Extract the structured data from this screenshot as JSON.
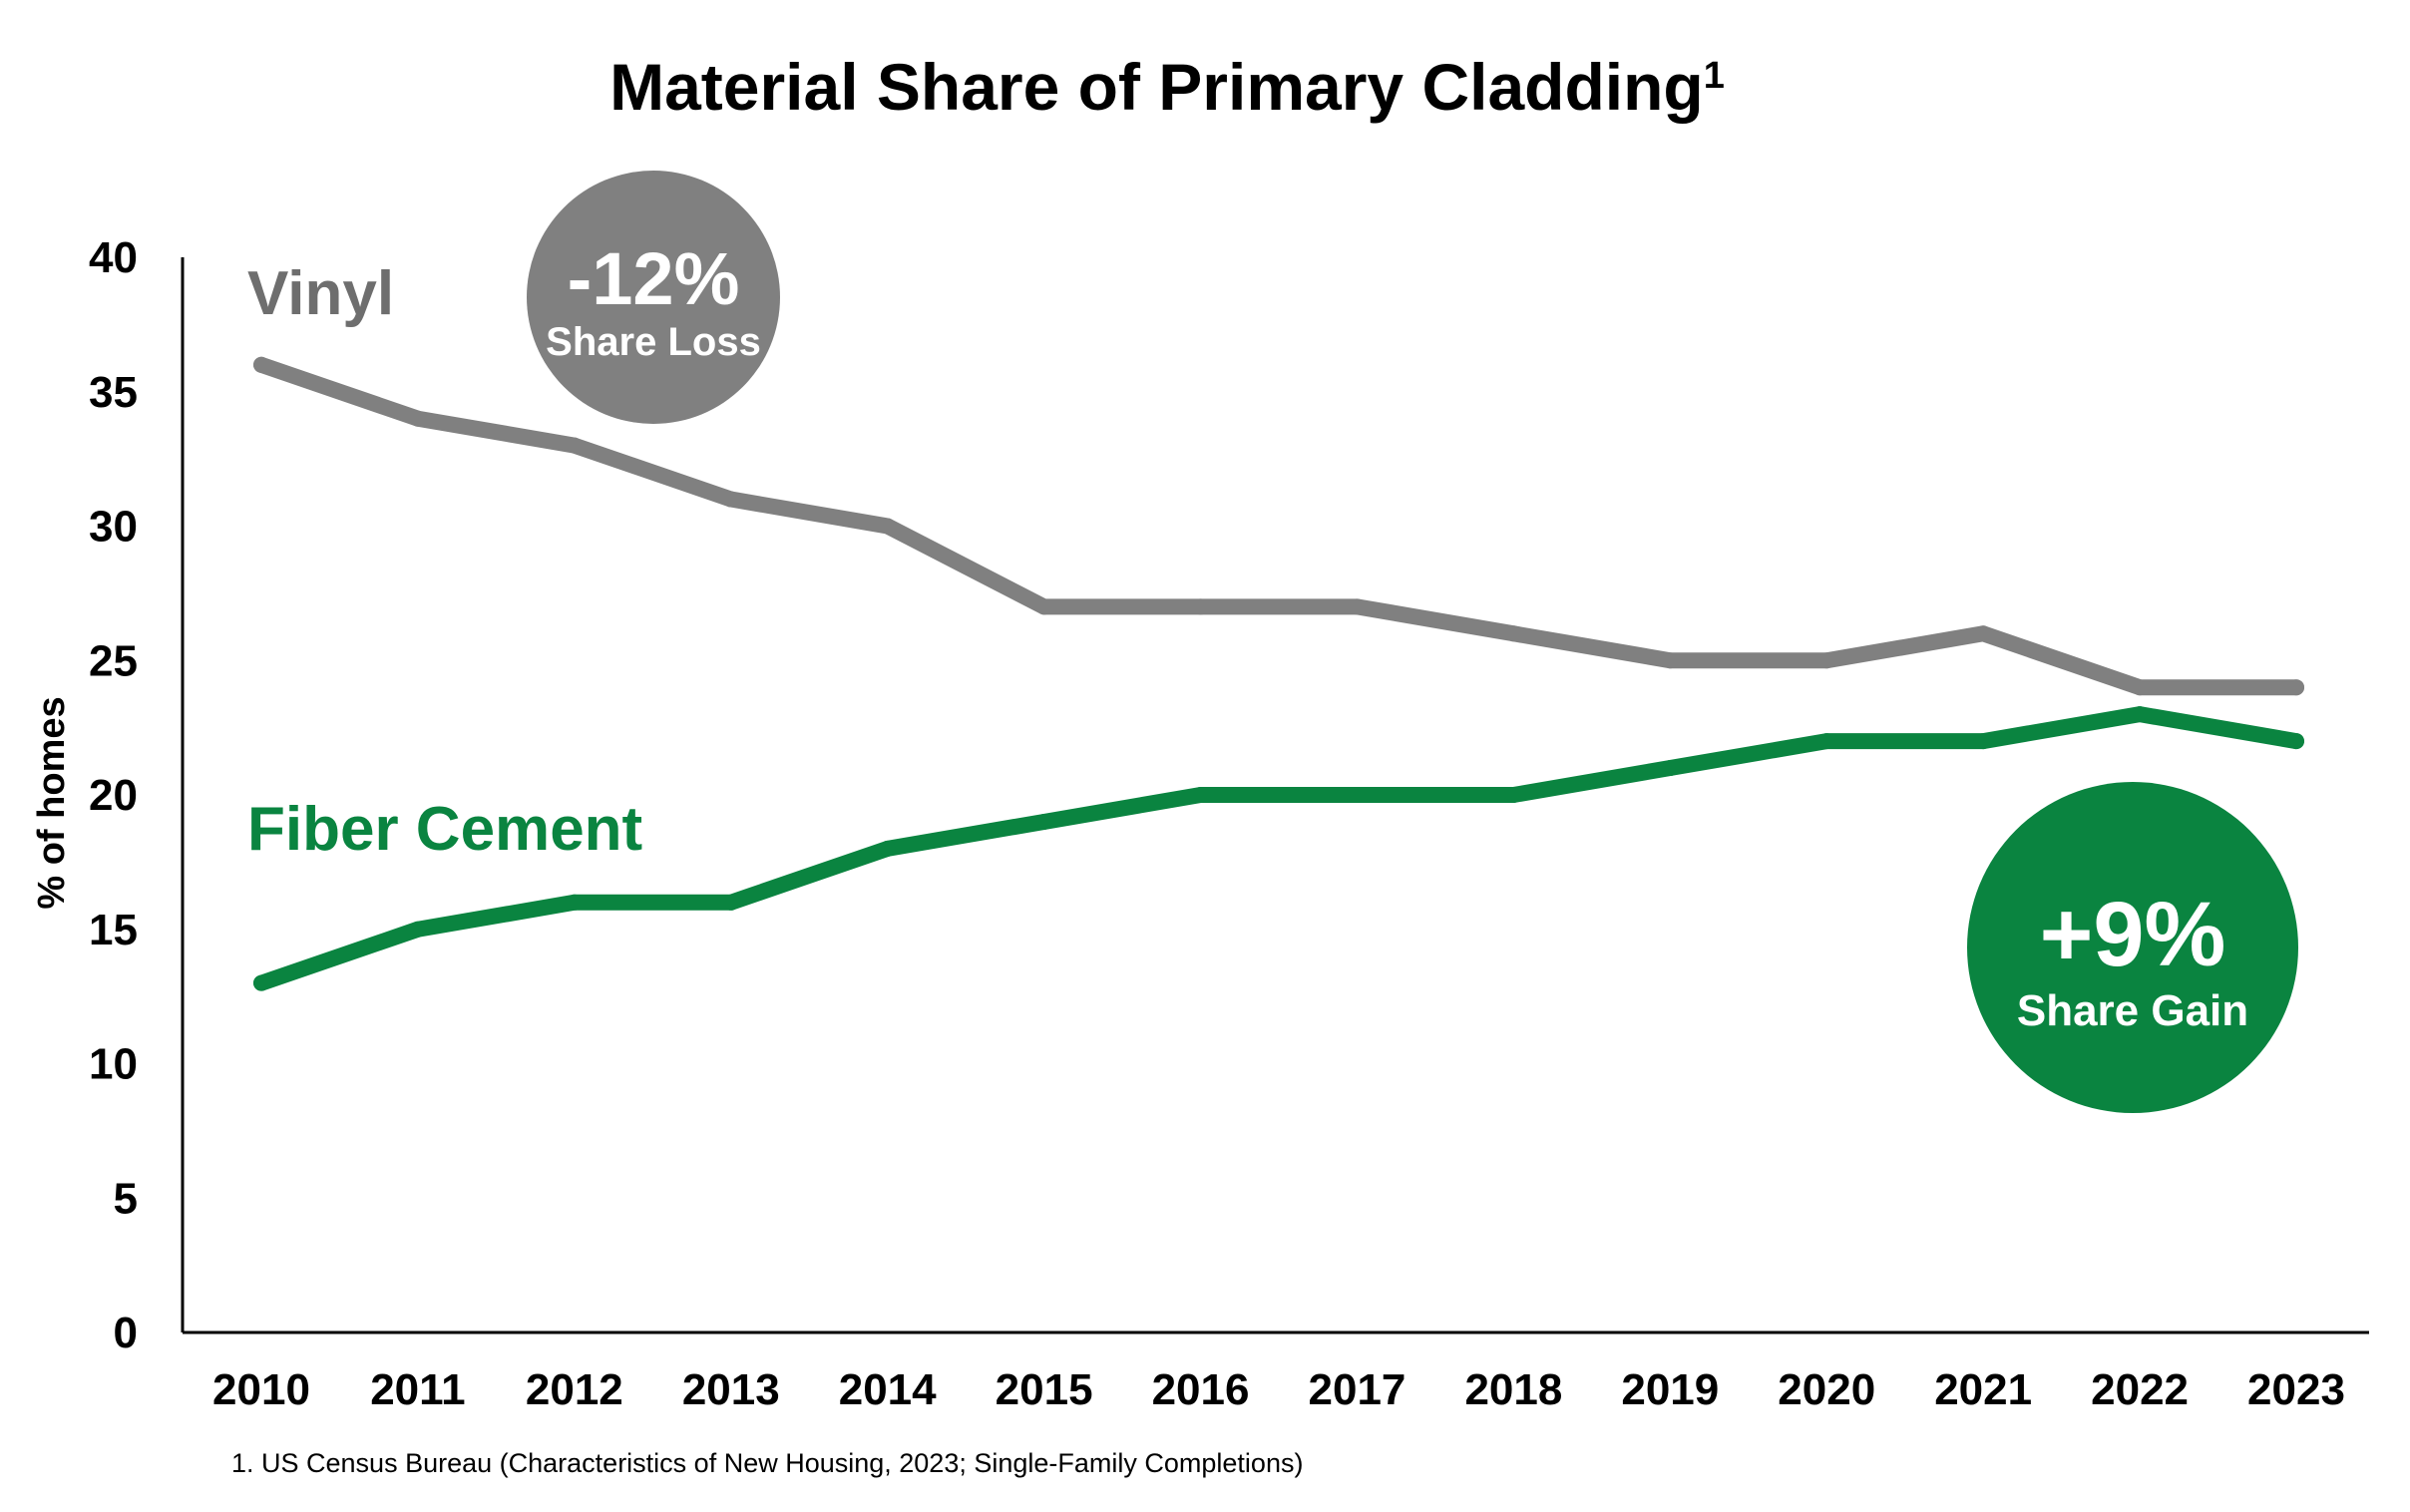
{
  "chart_data": {
    "type": "line",
    "title": "Material Share of Primary Cladding",
    "title_superscript": "1",
    "xlabel": "",
    "ylabel": "% of homes",
    "x": [
      "2010",
      "2011",
      "2012",
      "2013",
      "2014",
      "2015",
      "2016",
      "2017",
      "2018",
      "2019",
      "2020",
      "2021",
      "2022",
      "2023"
    ],
    "ylim": [
      0,
      40
    ],
    "yticks": [
      0,
      5,
      10,
      15,
      20,
      25,
      30,
      35,
      40
    ],
    "grid": false,
    "series": [
      {
        "name": "Vinyl",
        "color": "#808080",
        "values": [
          36,
          34,
          33,
          31,
          30,
          27,
          27,
          27,
          26,
          25,
          25,
          26,
          24,
          24
        ]
      },
      {
        "name": "Fiber Cement",
        "color": "#0a8440",
        "values": [
          13,
          15,
          16,
          16,
          18,
          19,
          20,
          20,
          20,
          21,
          22,
          22,
          23,
          22
        ]
      }
    ],
    "annotations": [
      {
        "id": "loss",
        "value": "-12%",
        "text": "Share Loss",
        "color": "#808080"
      },
      {
        "id": "gain",
        "value": "+9%",
        "text": "Share Gain",
        "color": "#0a8440"
      }
    ],
    "footnote": "1.  US Census Bureau (Characteristics of New Housing, 2023; Single-Family Completions)"
  }
}
